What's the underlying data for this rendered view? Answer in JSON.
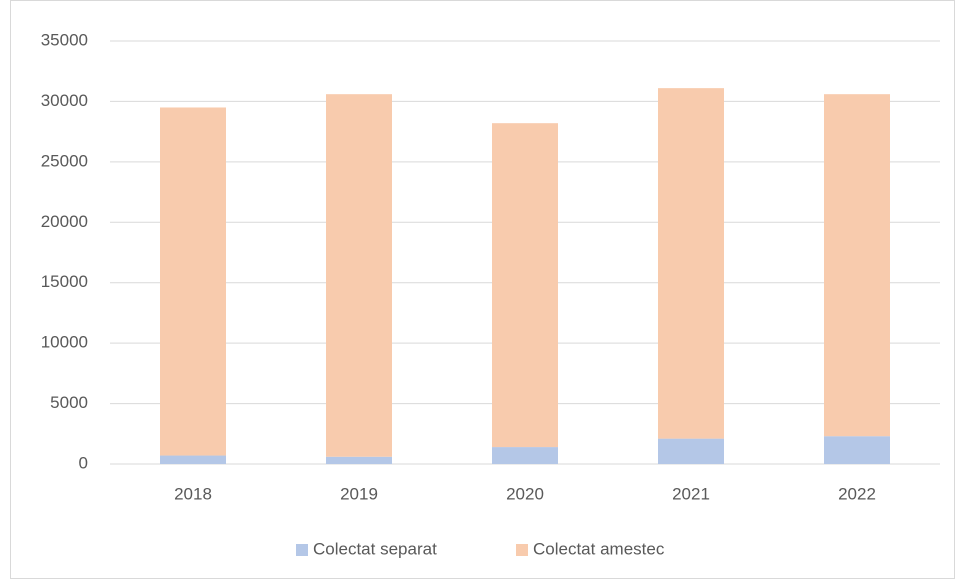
{
  "chart_data": {
    "type": "stacked_bar",
    "categories": [
      "2018",
      "2019",
      "2020",
      "2021",
      "2022"
    ],
    "series": [
      {
        "name": "Colectat separat",
        "color": "#b4c7e7",
        "values": [
          700,
          600,
          1400,
          2100,
          2300
        ]
      },
      {
        "name": "Colectat amestec",
        "color": "#f8cbad",
        "values": [
          28800,
          30000,
          26800,
          29000,
          28300
        ]
      }
    ],
    "ylim": [
      0,
      35000
    ],
    "yticks": [
      0,
      5000,
      10000,
      15000,
      20000,
      25000,
      30000,
      35000
    ],
    "grid": true,
    "legend": "bottom"
  }
}
